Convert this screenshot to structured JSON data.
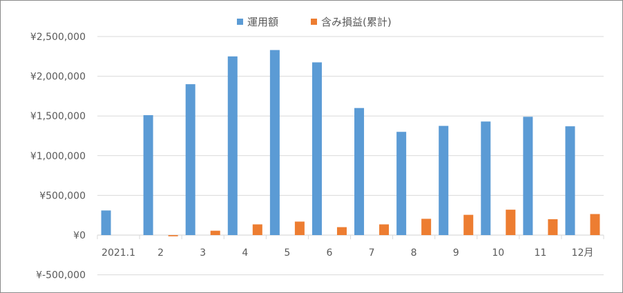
{
  "chart_data": {
    "type": "bar",
    "categories": [
      "2021.1",
      "2",
      "3",
      "4",
      "5",
      "6",
      "7",
      "8",
      "9",
      "10",
      "11",
      "12月"
    ],
    "series": [
      {
        "name": "運用額",
        "color": "#5b9bd5",
        "values": [
          310000,
          1510000,
          1900000,
          2250000,
          2330000,
          2175000,
          1600000,
          1300000,
          1375000,
          1430000,
          1490000,
          1370000
        ]
      },
      {
        "name": "含み損益(累計)",
        "color": "#ed7d31",
        "values": [
          0,
          -15000,
          55000,
          135000,
          170000,
          100000,
          135000,
          205000,
          255000,
          320000,
          200000,
          265000
        ]
      }
    ],
    "ylim": [
      -500000,
      2500000
    ],
    "yticks": [
      {
        "value": 2500000,
        "label": "¥2,500,000",
        "color": "#595959"
      },
      {
        "value": 2000000,
        "label": "¥2,000,000",
        "color": "#595959"
      },
      {
        "value": 1500000,
        "label": "¥1,500,000",
        "color": "#595959"
      },
      {
        "value": 1000000,
        "label": "¥1,000,000",
        "color": "#595959"
      },
      {
        "value": 500000,
        "label": "¥500,000",
        "color": "#595959"
      },
      {
        "value": 0,
        "label": "¥0",
        "color": "#595959"
      },
      {
        "value": -500000,
        "label": "¥-500,000",
        "color": "#ff0000"
      }
    ],
    "grid": true,
    "legend_position": "top-center",
    "title": "",
    "xlabel": "",
    "ylabel": ""
  }
}
